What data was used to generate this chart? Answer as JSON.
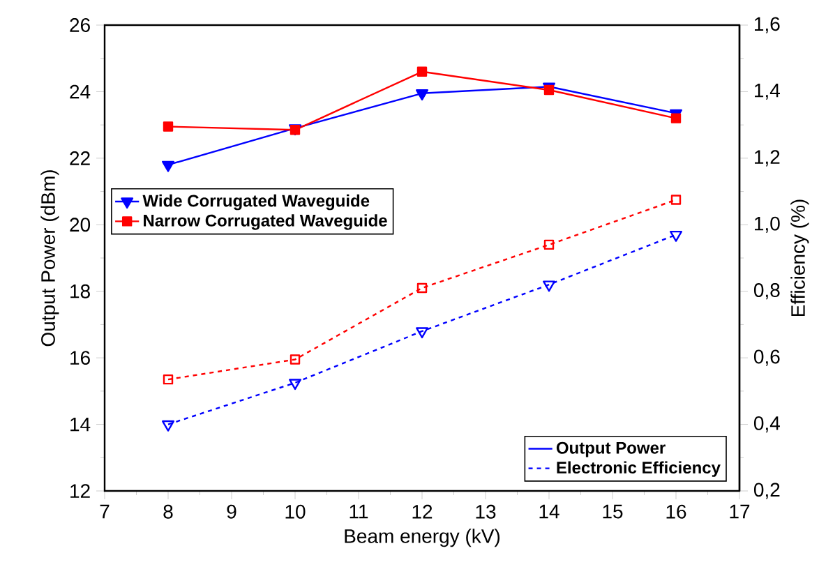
{
  "chart_data": {
    "type": "line",
    "xlabel": "Beam energy (kV)",
    "ylabel": "Output Power (dBm)",
    "y2label": "Efficiency (%)",
    "x": [
      8,
      10,
      12,
      14,
      16
    ],
    "xlim": [
      7,
      17
    ],
    "xticks": [
      7,
      8,
      9,
      10,
      11,
      12,
      13,
      14,
      15,
      16,
      17
    ],
    "ylim": [
      12,
      26
    ],
    "yticks": [
      12,
      14,
      16,
      18,
      20,
      22,
      24,
      26
    ],
    "y2lim": [
      0.2,
      1.6
    ],
    "y2ticks": [
      {
        "value": 0.2,
        "label": "0,2"
      },
      {
        "value": 0.4,
        "label": "0,4"
      },
      {
        "value": 0.6,
        "label": "0,6"
      },
      {
        "value": 0.8,
        "label": "0,8"
      },
      {
        "value": 1.0,
        "label": "1,0"
      },
      {
        "value": 1.2,
        "label": "1,2"
      },
      {
        "value": 1.4,
        "label": "1,4"
      },
      {
        "value": 1.6,
        "label": "1,6"
      }
    ],
    "series": [
      {
        "name": "Wide Corrugated Waveguide",
        "color": "#0000ff",
        "marker": "triangle",
        "line_style": "solid",
        "values": [
          21.8,
          22.9,
          23.95,
          24.15,
          23.35
        ]
      },
      {
        "name": "Narrow Corrugated Waveguide",
        "color": "#ff0000",
        "marker": "square",
        "line_style": "solid",
        "values": [
          22.95,
          22.85,
          24.6,
          24.05,
          23.2
        ]
      },
      {
        "color": "#0000ff",
        "marker": "triangle",
        "line_style": "dashed",
        "axis": "y2",
        "values": [
          0.4,
          0.525,
          0.68,
          0.82,
          0.97
        ]
      },
      {
        "color": "#ff0000",
        "marker": "square",
        "line_style": "dashed",
        "axis": "y2",
        "values": [
          0.535,
          0.595,
          0.81,
          0.94,
          1.075
        ]
      }
    ],
    "annotations": [
      "Output Power",
      "Electronic Efficiency"
    ],
    "legend": "left",
    "grid": false
  }
}
